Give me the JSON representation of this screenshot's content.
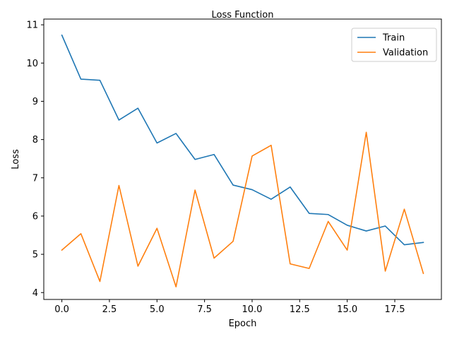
{
  "chart_data": {
    "type": "line",
    "title": "Loss Function",
    "xlabel": "Epoch",
    "ylabel": "Loss",
    "xlim": [
      -0.95,
      19.95
    ],
    "ylim": [
      3.82,
      11.15
    ],
    "xticks": [
      0.0,
      2.5,
      5.0,
      7.5,
      10.0,
      12.5,
      15.0,
      17.5
    ],
    "xtick_labels": [
      "0.0",
      "2.5",
      "5.0",
      "7.5",
      "10.0",
      "12.5",
      "15.0",
      "17.5"
    ],
    "yticks": [
      4,
      5,
      6,
      7,
      8,
      9,
      10,
      11
    ],
    "ytick_labels": [
      "4",
      "5",
      "6",
      "7",
      "8",
      "9",
      "10",
      "11"
    ],
    "grid": false,
    "legend": "top-right",
    "x": [
      0,
      1,
      2,
      3,
      4,
      5,
      6,
      7,
      8,
      9,
      10,
      11,
      12,
      13,
      14,
      15,
      16,
      17,
      18,
      19
    ],
    "series": [
      {
        "name": "Train",
        "color": "#1f77b4",
        "values": [
          10.73,
          9.58,
          9.55,
          8.51,
          8.82,
          7.91,
          8.16,
          7.48,
          7.61,
          6.81,
          6.69,
          6.44,
          6.76,
          6.07,
          6.04,
          5.76,
          5.61,
          5.74,
          5.25,
          5.31
        ]
      },
      {
        "name": "Validation",
        "color": "#ff7f0e",
        "values": [
          5.11,
          5.54,
          4.29,
          6.8,
          4.69,
          5.68,
          4.15,
          6.68,
          4.9,
          5.34,
          7.57,
          7.85,
          4.75,
          4.63,
          5.86,
          5.11,
          8.19,
          4.56,
          6.18,
          4.5
        ]
      }
    ]
  }
}
